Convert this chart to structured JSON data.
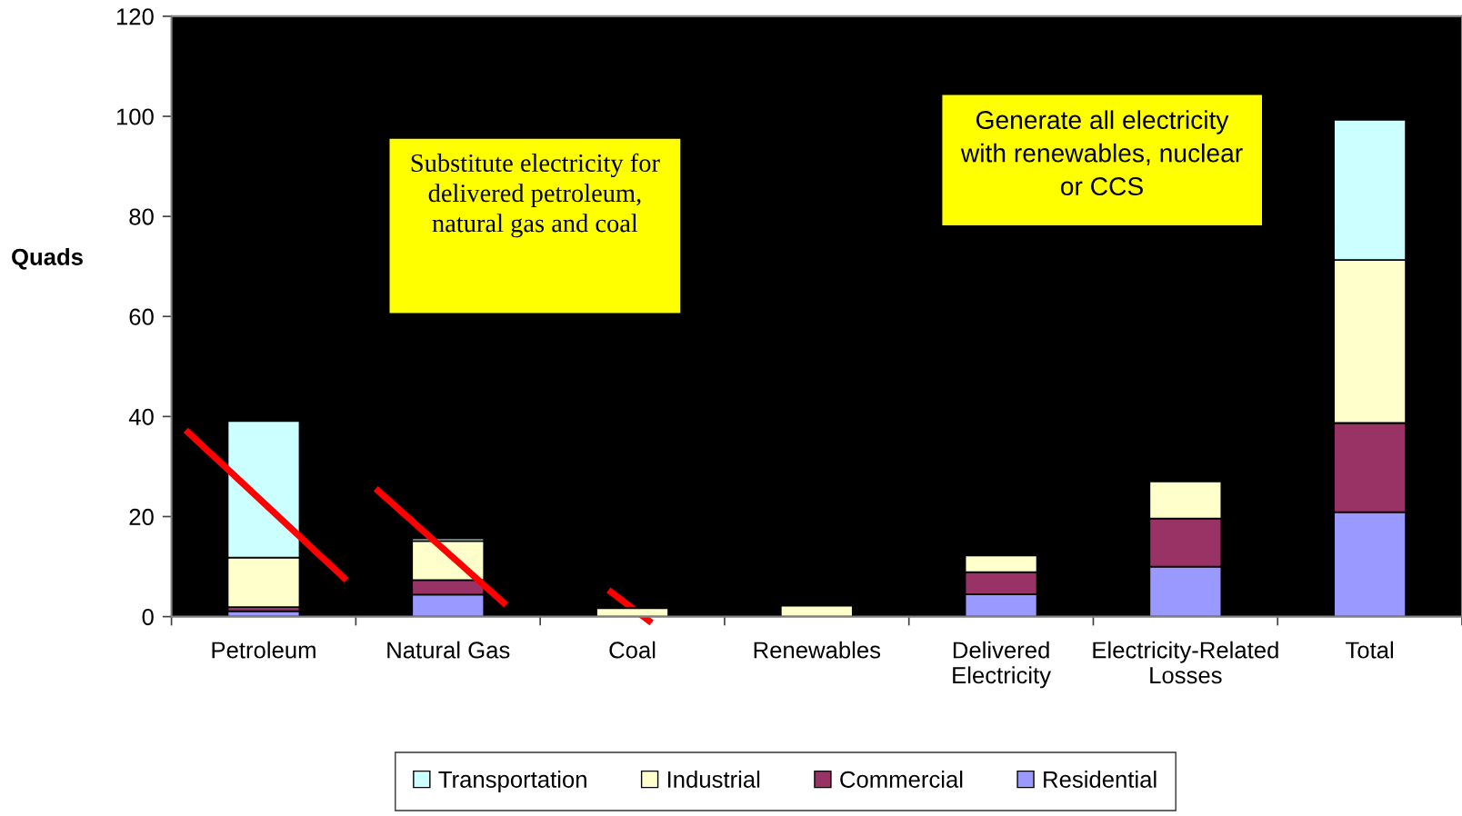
{
  "chart_data": {
    "type": "bar",
    "stacked": true,
    "categories": [
      "Petroleum",
      "Natural Gas",
      "Coal",
      "Renewables",
      "Delivered Electricity",
      "Electricity-Related Losses",
      "Total"
    ],
    "ylabel": "Quads",
    "ylim": [
      0,
      120
    ],
    "yticks": [
      0,
      20,
      40,
      60,
      80,
      100,
      120
    ],
    "series": [
      {
        "name": "Residential",
        "color": "#9999ff",
        "values": [
          1.1,
          4.4,
          null,
          null,
          4.5,
          10.0,
          20.9
        ]
      },
      {
        "name": "Commercial",
        "color": "#993366",
        "values": [
          0.8,
          2.9,
          null,
          null,
          4.4,
          9.6,
          17.8
        ]
      },
      {
        "name": "Industrial",
        "color": "#ffffcc",
        "values": [
          9.9,
          7.8,
          1.7,
          2.2,
          3.3,
          7.4,
          32.6
        ]
      },
      {
        "name": "Transportation",
        "color": "#ccffff",
        "values": [
          27.3,
          0.5,
          null,
          null,
          null,
          null,
          28.0
        ]
      }
    ],
    "annotations": [
      "Substitute electricity for\ndelivered petroleum,\nnatural gas and coal",
      "Generate all electricity\nwith renewables, nuclear\nor CCS"
    ],
    "legend": "bottom"
  }
}
